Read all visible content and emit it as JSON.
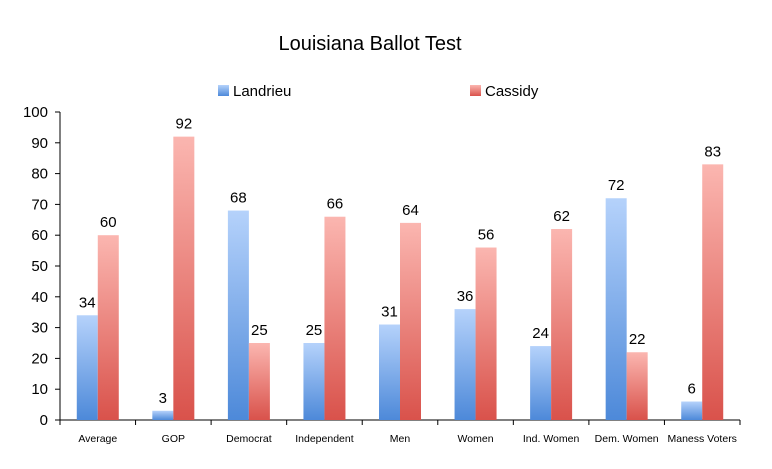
{
  "chart_data": {
    "type": "bar",
    "title": "Louisiana Ballot Test",
    "categories": [
      "Average",
      "GOP",
      "Democrat",
      "Independent",
      "Men",
      "Women",
      "Ind. Women",
      "Dem. Women",
      "Maness Voters"
    ],
    "series": [
      {
        "name": "Landrieu",
        "values": [
          34,
          3,
          68,
          25,
          31,
          36,
          24,
          72,
          6
        ],
        "color": "#6fa3e6"
      },
      {
        "name": "Cassidy",
        "values": [
          60,
          92,
          25,
          66,
          64,
          56,
          62,
          22,
          83
        ],
        "color": "#e8706a"
      }
    ],
    "ylim": [
      0,
      100
    ],
    "yticks": [
      0,
      10,
      20,
      30,
      40,
      50,
      60,
      70,
      80,
      90,
      100
    ],
    "grid": false,
    "legend_position": "top",
    "xlabel": "",
    "ylabel": ""
  }
}
